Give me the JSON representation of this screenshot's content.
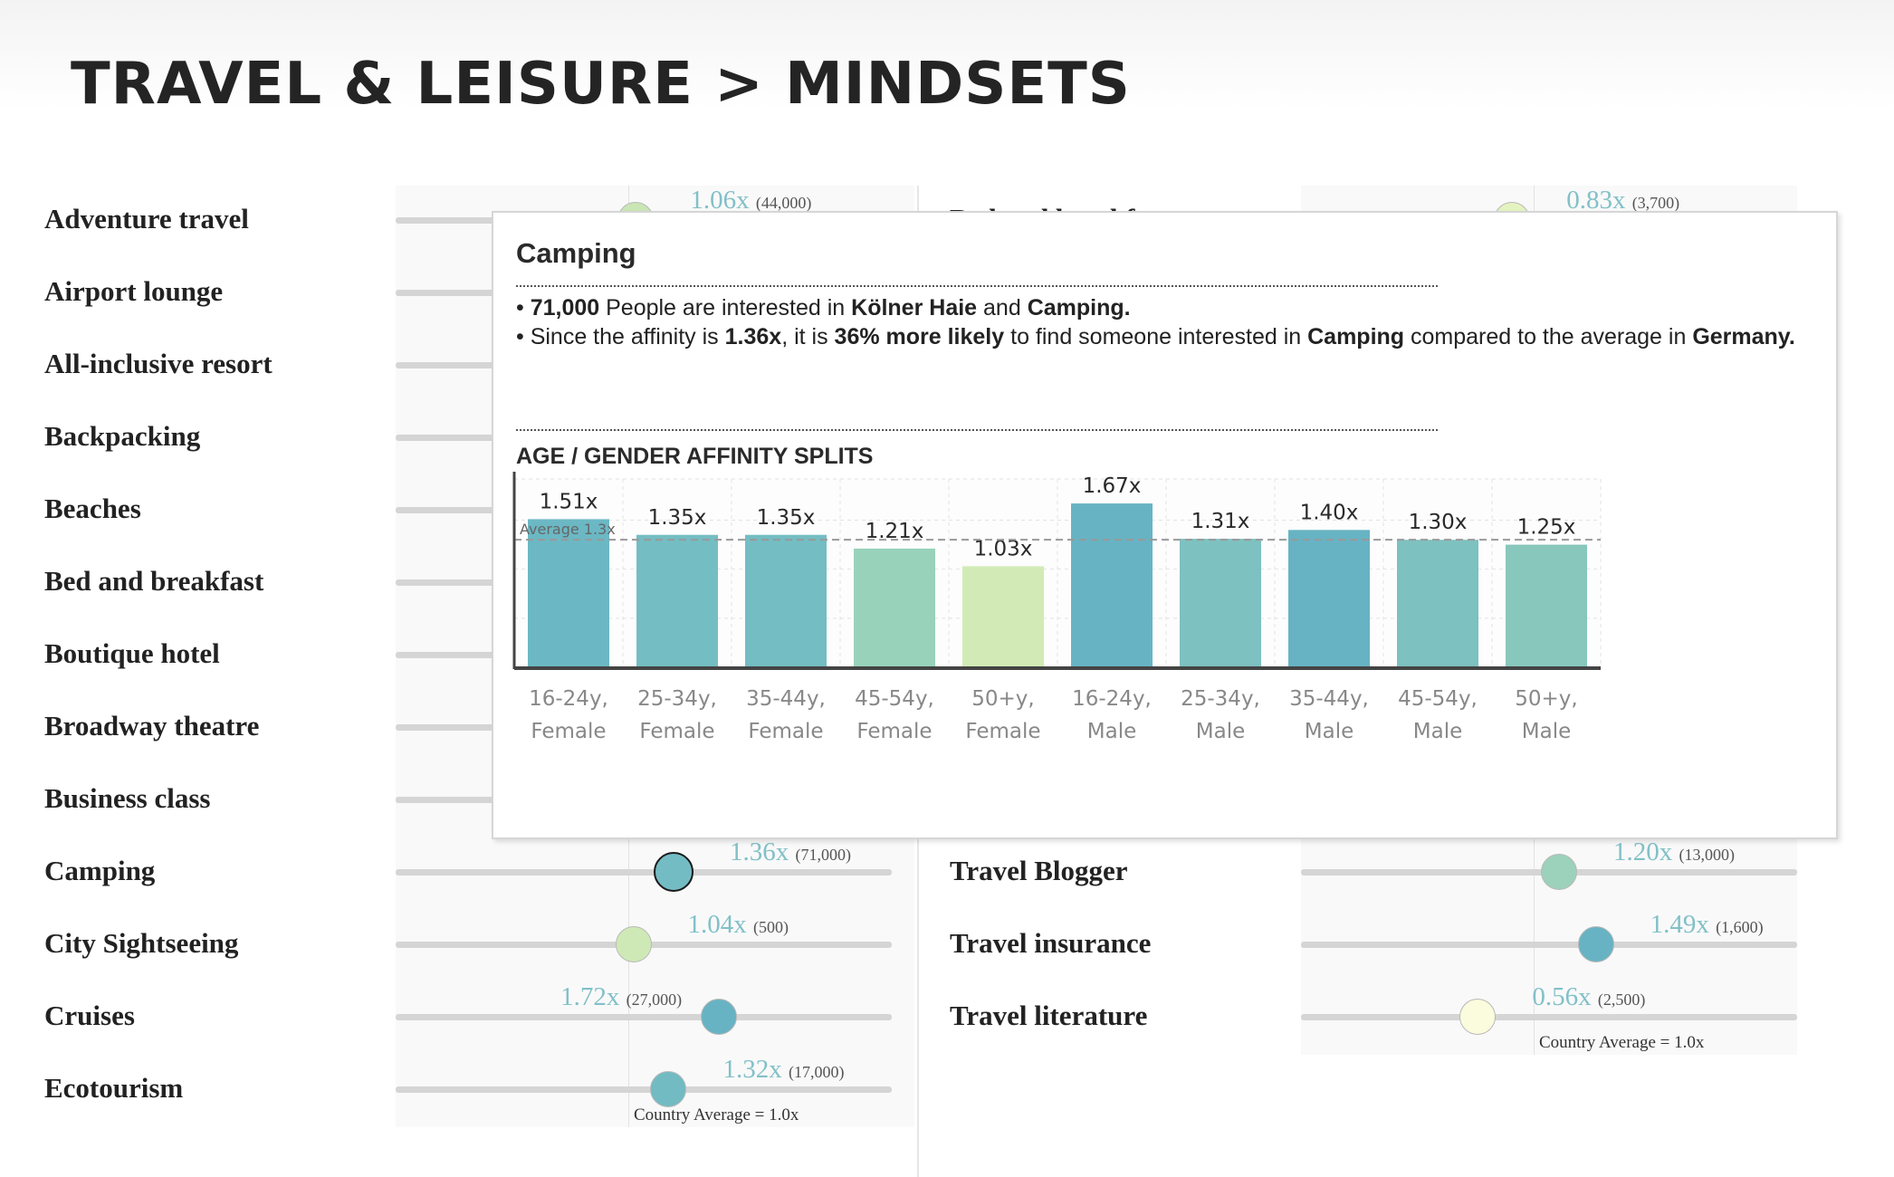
{
  "page": {
    "title": "TRAVEL & LEISURE > MINDSETS",
    "country_average_label": "Country Average = 1.0x"
  },
  "left_rows": [
    {
      "label": "Adventure travel",
      "value": "1.06x",
      "count": "(44,000)",
      "affinity": 1.06,
      "color": "#c9e6b4"
    },
    {
      "label": "Airport lounge"
    },
    {
      "label": "All-inclusive resort"
    },
    {
      "label": "Backpacking"
    },
    {
      "label": "Beaches"
    },
    {
      "label": "Bed and breakfast"
    },
    {
      "label": "Boutique hotel"
    },
    {
      "label": "Broadway theatre"
    },
    {
      "label": "Business class"
    },
    {
      "label": "Camping",
      "value": "1.36x",
      "count": "(71,000)",
      "affinity": 1.36,
      "color": "#74bcc4",
      "selected": true
    },
    {
      "label": "City Sightseeing",
      "value": "1.04x",
      "count": "(500)",
      "affinity": 1.04,
      "color": "#cfe9b6"
    },
    {
      "label": "Cruises",
      "value": "1.72x",
      "count": "(27,000)",
      "affinity": 1.72,
      "color": "#67b3c3"
    },
    {
      "label": "Ecotourism",
      "value": "1.32x",
      "count": "(17,000)",
      "affinity": 1.32,
      "color": "#72bbc3"
    }
  ],
  "right_rows": [
    {
      "label": "Bed and breakfast",
      "value": "0.83x",
      "count": "(3,700)",
      "affinity": 0.83,
      "color": "#e4f3c0"
    },
    {
      "label": "Travel Blogger",
      "value": "1.20x",
      "count": "(13,000)",
      "affinity": 1.2,
      "color": "#9cd1bb"
    },
    {
      "label": "Travel insurance",
      "value": "1.49x",
      "count": "(1,600)",
      "affinity": 1.49,
      "color": "#67b3c3"
    },
    {
      "label": "Travel literature",
      "value": "0.56x",
      "count": "(2,500)",
      "affinity": 0.56,
      "color": "#fbfbdd"
    }
  ],
  "tooltip": {
    "title": "Camping",
    "line1_bold1": "71,000",
    "line1_text1": " People are interested in ",
    "line1_bold2": "Kölner Haie",
    "line1_text2": " and ",
    "line1_bold3": "Camping.",
    "line2_text1": "Since the affinity is ",
    "line2_bold1": "1.36x",
    "line2_text2": ", it is ",
    "line2_bold2": "36% more likely",
    "line2_text3": " to find someone interested in ",
    "line2_bold3": "Camping",
    "line2_text4": " compared to the average in ",
    "line2_bold4": "Germany.",
    "subtitle": "AGE / GENDER AFFINITY SPLITS"
  },
  "chart_data": {
    "type": "bar",
    "title": "AGE / GENDER AFFINITY SPLITS",
    "categories": [
      [
        "16-24y,",
        "Female"
      ],
      [
        "25-34y,",
        "Female"
      ],
      [
        "35-44y,",
        "Female"
      ],
      [
        "45-54y,",
        "Female"
      ],
      [
        "50+y,",
        "Female"
      ],
      [
        "16-24y,",
        "Male"
      ],
      [
        "25-34y,",
        "Male"
      ],
      [
        "35-44y,",
        "Male"
      ],
      [
        "45-54y,",
        "Male"
      ],
      [
        "50+y,",
        "Male"
      ]
    ],
    "values": [
      1.51,
      1.35,
      1.35,
      1.21,
      1.03,
      1.67,
      1.31,
      1.4,
      1.3,
      1.25
    ],
    "value_labels": [
      "1.51x",
      "1.35x",
      "1.35x",
      "1.21x",
      "1.03x",
      "1.67x",
      "1.31x",
      "1.40x",
      "1.30x",
      "1.25x"
    ],
    "colors": [
      "#6bb8c4",
      "#74bdc3",
      "#74bdc3",
      "#98d2bb",
      "#d2ebb6",
      "#67b3c3",
      "#7dc1c0",
      "#67b3c3",
      "#7dc1c0",
      "#88c7bc"
    ],
    "average": 1.3,
    "average_label": "Average 1.3x",
    "ylim": [
      0,
      1.92
    ],
    "grid": true
  }
}
